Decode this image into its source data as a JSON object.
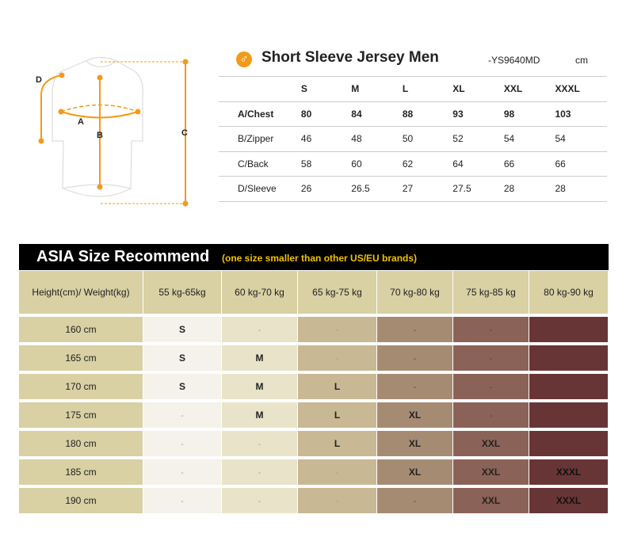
{
  "diagram": {
    "labels": {
      "a": "A",
      "b": "B",
      "c": "C",
      "d": "D"
    },
    "accent": "#f39a1a"
  },
  "header": {
    "title": "Short Sleeve Jersey Men",
    "code": "-YS9640MD",
    "unit": "cm",
    "icon": "male-icon"
  },
  "spec": {
    "sizes": [
      "S",
      "M",
      "L",
      "XL",
      "XXL",
      "XXXL"
    ],
    "rows": [
      {
        "label": "A/Chest",
        "values": [
          "80",
          "84",
          "88",
          "93",
          "98",
          "103"
        ]
      },
      {
        "label": "B/Zipper",
        "values": [
          "46",
          "48",
          "50",
          "52",
          "54",
          "54"
        ]
      },
      {
        "label": "C/Back",
        "values": [
          "58",
          "60",
          "62",
          "64",
          "66",
          "66"
        ]
      },
      {
        "label": "D/Sleeve",
        "values": [
          "26",
          "26.5",
          "27",
          "27.5",
          "28",
          "28"
        ]
      }
    ]
  },
  "recommend": {
    "title": "ASIA Size Recommend",
    "note": "(one size smaller than other US/EU brands)",
    "corner": "Height(cm)/ Weight(kg)",
    "weights": [
      "55 kg-65kg",
      "60 kg-70 kg",
      "65 kg-75 kg",
      "70 kg-80 kg",
      "75 kg-85 kg",
      "80 kg-90 kg"
    ],
    "rows": [
      {
        "height": "160 cm",
        "cells": [
          "S",
          "-",
          "-",
          "-",
          "-",
          "-"
        ]
      },
      {
        "height": "165 cm",
        "cells": [
          "S",
          "M",
          "-",
          "-",
          "-",
          "-"
        ]
      },
      {
        "height": "170 cm",
        "cells": [
          "S",
          "M",
          "L",
          "-",
          "-",
          "-"
        ]
      },
      {
        "height": "175 cm",
        "cells": [
          "-",
          "M",
          "L",
          "XL",
          "-",
          "-"
        ]
      },
      {
        "height": "180 cm",
        "cells": [
          "-",
          "-",
          "L",
          "XL",
          "XXL",
          "-"
        ]
      },
      {
        "height": "185 cm",
        "cells": [
          "-",
          "-",
          "-",
          "XL",
          "XXL",
          "XXXL"
        ]
      },
      {
        "height": "190 cm",
        "cells": [
          "-",
          "-",
          "-",
          "-",
          "XXL",
          "XXXL"
        ]
      }
    ]
  }
}
